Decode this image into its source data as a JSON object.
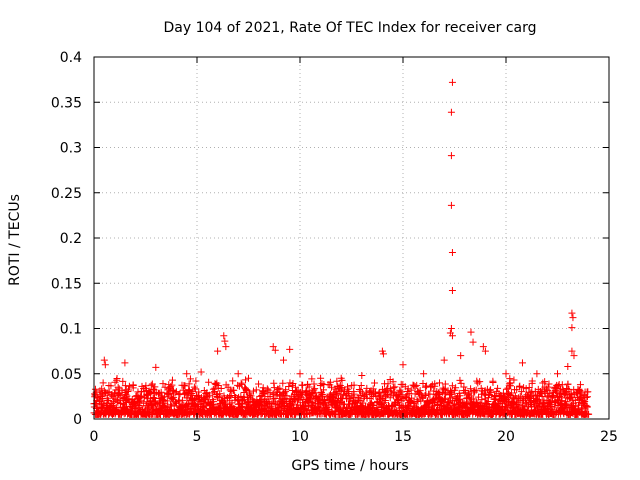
{
  "chart_data": {
    "type": "scatter",
    "title": "Day 104 of 2021, Rate Of TEC Index for receiver carg",
    "xlabel": "GPS time / hours",
    "ylabel": "ROTI / TECUs",
    "xlim": [
      0,
      25
    ],
    "ylim": [
      0,
      0.4
    ],
    "xticks": [
      0,
      5,
      10,
      15,
      20,
      25
    ],
    "xtick_labels": [
      "0",
      "5",
      "10",
      "15",
      "20",
      "25"
    ],
    "yticks": [
      0,
      0.05,
      0.1,
      0.15,
      0.2,
      0.25,
      0.3,
      0.35,
      0.4
    ],
    "ytick_labels": [
      "0",
      "0.05",
      "0.1",
      "0.15",
      "0.2",
      "0.25",
      "0.3",
      "0.35",
      "0.4"
    ],
    "grid": true,
    "marker": "+",
    "series": [
      {
        "name": "ROTI",
        "color": "#ff0000",
        "baseline_range": [
          0.0,
          24.0
        ],
        "baseline_values": [
          0.005,
          0.045
        ],
        "points": [
          [
            0.5,
            0.065
          ],
          [
            0.55,
            0.06
          ],
          [
            1.5,
            0.062
          ],
          [
            3.0,
            0.057
          ],
          [
            4.5,
            0.05
          ],
          [
            5.2,
            0.052
          ],
          [
            6.0,
            0.075
          ],
          [
            6.3,
            0.092
          ],
          [
            6.35,
            0.086
          ],
          [
            6.4,
            0.08
          ],
          [
            7.0,
            0.05
          ],
          [
            7.5,
            0.045
          ],
          [
            8.7,
            0.08
          ],
          [
            8.8,
            0.076
          ],
          [
            9.2,
            0.065
          ],
          [
            9.5,
            0.077
          ],
          [
            10.0,
            0.05
          ],
          [
            11.0,
            0.045
          ],
          [
            12.0,
            0.045
          ],
          [
            13.0,
            0.048
          ],
          [
            14.0,
            0.075
          ],
          [
            14.05,
            0.072
          ],
          [
            15.0,
            0.06
          ],
          [
            16.0,
            0.05
          ],
          [
            17.0,
            0.065
          ],
          [
            17.3,
            0.095
          ],
          [
            17.35,
            0.1
          ],
          [
            17.4,
            0.092
          ],
          [
            17.8,
            0.07
          ],
          [
            18.3,
            0.096
          ],
          [
            18.4,
            0.085
          ],
          [
            18.9,
            0.08
          ],
          [
            19.0,
            0.075
          ],
          [
            20.0,
            0.05
          ],
          [
            20.8,
            0.062
          ],
          [
            21.5,
            0.05
          ],
          [
            22.5,
            0.05
          ],
          [
            23.0,
            0.058
          ],
          [
            23.2,
            0.075
          ],
          [
            23.3,
            0.07
          ],
          [
            17.4,
            0.372
          ],
          [
            17.35,
            0.339
          ],
          [
            17.35,
            0.291
          ],
          [
            17.35,
            0.236
          ],
          [
            17.4,
            0.184
          ],
          [
            17.4,
            0.142
          ],
          [
            23.2,
            0.117
          ],
          [
            23.25,
            0.112
          ],
          [
            23.2,
            0.101
          ]
        ]
      }
    ]
  }
}
